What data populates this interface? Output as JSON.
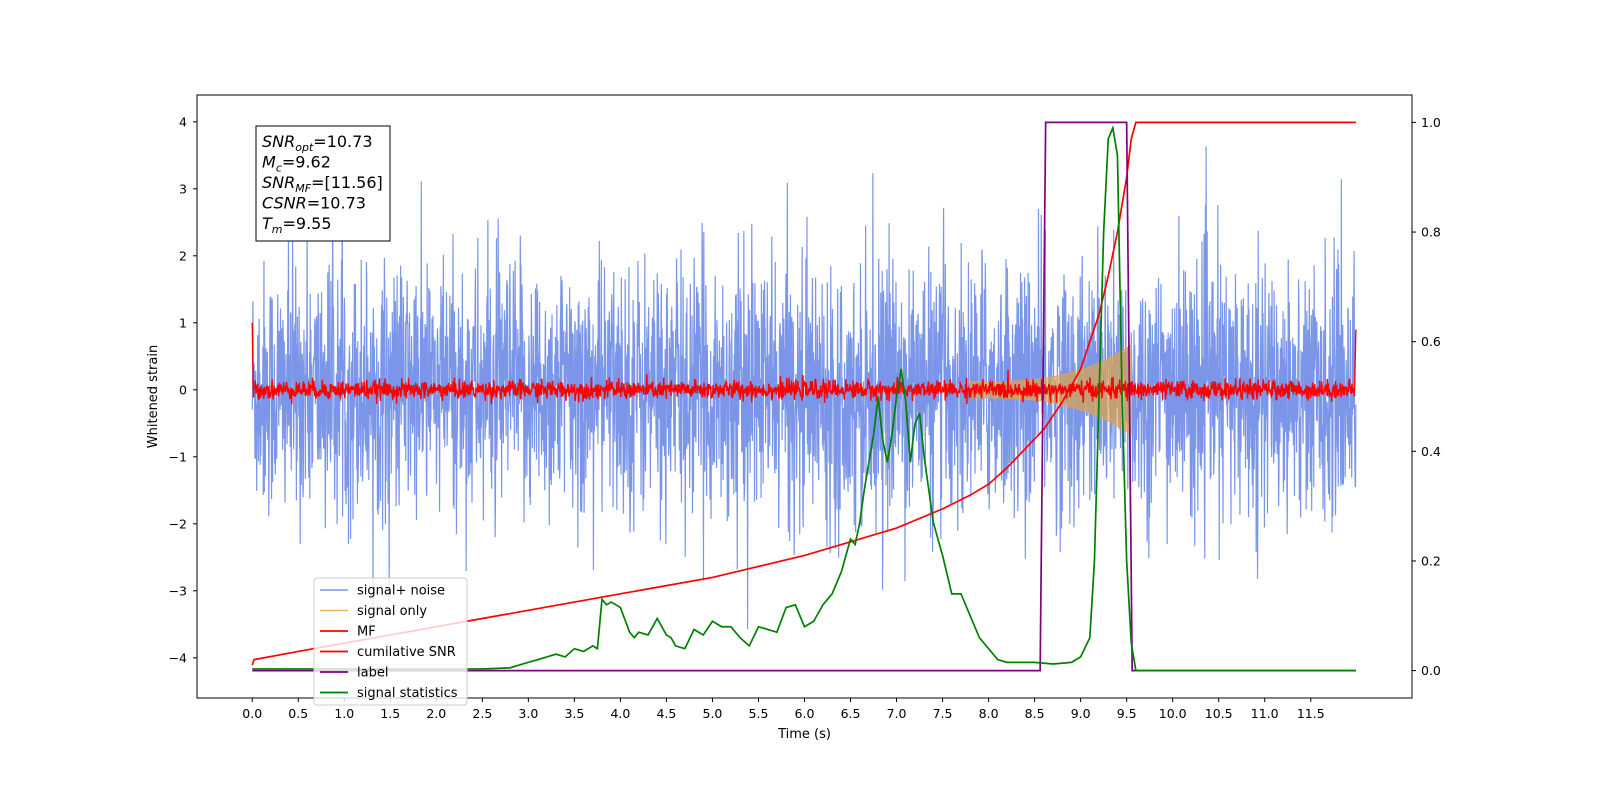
{
  "chart_data": {
    "type": "line",
    "xlabel": "Time (s)",
    "ylabel": "Whitened strain",
    "xlim": [
      -0.6,
      12.6
    ],
    "ylim": [
      -4.6,
      4.4
    ],
    "ylim_right": [
      -0.05,
      1.05
    ],
    "x_ticks": [
      0.0,
      0.5,
      1.0,
      1.5,
      2.0,
      2.5,
      3.0,
      3.5,
      4.0,
      4.5,
      5.0,
      5.5,
      6.0,
      6.5,
      7.0,
      7.5,
      8.0,
      8.5,
      9.0,
      9.5,
      10.0,
      10.5,
      11.0,
      11.5
    ],
    "x_tick_labels": [
      "0.0",
      "0.5",
      "1.0",
      "1.5",
      "2.0",
      "2.5",
      "3.0",
      "3.5",
      "4.0",
      "4.5",
      "5.0",
      "5.5",
      "6.0",
      "6.5",
      "7.0",
      "7.5",
      "8.0",
      "8.5",
      "9.0",
      "9.5",
      "10.0",
      "10.5",
      "11.0",
      "11.5"
    ],
    "y_ticks": [
      -4,
      -3,
      -2,
      -1,
      0,
      1,
      2,
      3,
      4
    ],
    "y_tick_labels": [
      "−4",
      "−3",
      "−2",
      "−1",
      "0",
      "1",
      "2",
      "3",
      "4"
    ],
    "y_right_ticks": [
      0.0,
      0.2,
      0.4,
      0.6,
      0.8,
      1.0
    ],
    "y_right_tick_labels": [
      "0.0",
      "0.2",
      "0.4",
      "0.6",
      "0.8",
      "1.0"
    ],
    "grid": false,
    "legend_position": "lower-left",
    "info_box": {
      "position": "top-left",
      "lines": [
        {
          "base": "SNR",
          "sub": "opt",
          "rest": "=10.73"
        },
        {
          "base": "M",
          "sub": "c",
          "rest": "=9.62"
        },
        {
          "base": "SNR",
          "sub": "MF",
          "rest": "=[11.56]"
        },
        {
          "base": "CSNR",
          "sub": "",
          "rest": "=10.73"
        },
        {
          "base": "T",
          "sub": "m",
          "rest": "=9.55"
        }
      ]
    },
    "colors": {
      "noise": "#7b96e8",
      "signal": "#e5a540",
      "mf": "#ff0000",
      "cumulative": "#ff0000",
      "label": "#800080",
      "stats": "#008000"
    },
    "series": [
      {
        "name": "signal+ noise",
        "key": "noise",
        "axis": "left",
        "type": "noise",
        "x_range": [
          0.0,
          11.99
        ]
      },
      {
        "name": "signal only",
        "key": "signal",
        "axis": "left",
        "type": "chirp",
        "x_range": [
          7.8,
          9.55
        ]
      },
      {
        "name": "MF",
        "key": "mf",
        "axis": "left",
        "type": "noise",
        "x_range": [
          0.0,
          11.99
        ]
      },
      {
        "name": "cumilative SNR",
        "key": "cumulative",
        "axis": "right",
        "x": [
          0.0,
          0.02,
          0.5,
          1.0,
          1.5,
          2.0,
          2.5,
          3.0,
          3.5,
          4.0,
          4.5,
          5.0,
          5.5,
          6.0,
          6.5,
          7.0,
          7.5,
          7.8,
          8.0,
          8.2,
          8.4,
          8.6,
          8.8,
          9.0,
          9.1,
          9.2,
          9.3,
          9.4,
          9.5,
          9.55,
          9.6,
          11.99
        ],
        "y": [
          0.01,
          0.02,
          0.035,
          0.05,
          0.065,
          0.08,
          0.095,
          0.11,
          0.125,
          0.14,
          0.155,
          0.17,
          0.19,
          0.21,
          0.235,
          0.26,
          0.295,
          0.32,
          0.34,
          0.37,
          0.405,
          0.44,
          0.49,
          0.55,
          0.6,
          0.65,
          0.72,
          0.8,
          0.9,
          0.97,
          1.0,
          1.0
        ]
      },
      {
        "name": "label",
        "key": "label",
        "axis": "right",
        "x": [
          0.0,
          8.56,
          8.62,
          9.5,
          9.56,
          11.99
        ],
        "y": [
          0.0,
          0.0,
          1.0,
          1.0,
          0.0,
          0.0
        ]
      },
      {
        "name": "signal statistics",
        "key": "stats",
        "axis": "right",
        "x": [
          0.0,
          0.5,
          1.0,
          1.5,
          2.0,
          2.5,
          2.8,
          2.9,
          3.0,
          3.1,
          3.2,
          3.3,
          3.4,
          3.5,
          3.6,
          3.7,
          3.75,
          3.8,
          3.85,
          3.9,
          4.0,
          4.1,
          4.15,
          4.2,
          4.3,
          4.4,
          4.5,
          4.55,
          4.6,
          4.7,
          4.8,
          4.9,
          5.0,
          5.1,
          5.2,
          5.3,
          5.4,
          5.5,
          5.6,
          5.7,
          5.8,
          5.9,
          6.0,
          6.1,
          6.2,
          6.3,
          6.4,
          6.5,
          6.55,
          6.6,
          6.65,
          6.7,
          6.75,
          6.8,
          6.85,
          6.9,
          6.95,
          7.0,
          7.05,
          7.1,
          7.15,
          7.2,
          7.25,
          7.3,
          7.35,
          7.4,
          7.5,
          7.6,
          7.7,
          7.8,
          7.9,
          8.0,
          8.1,
          8.2,
          8.3,
          8.5,
          8.7,
          8.9,
          9.0,
          9.1,
          9.15,
          9.2,
          9.25,
          9.3,
          9.35,
          9.4,
          9.45,
          9.5,
          9.55,
          9.6,
          10.0,
          11.0,
          11.99
        ],
        "y": [
          0.003,
          0.003,
          0.003,
          0.003,
          0.003,
          0.003,
          0.005,
          0.01,
          0.015,
          0.02,
          0.025,
          0.03,
          0.025,
          0.04,
          0.035,
          0.045,
          0.04,
          0.13,
          0.12,
          0.125,
          0.115,
          0.07,
          0.06,
          0.07,
          0.065,
          0.095,
          0.065,
          0.06,
          0.045,
          0.04,
          0.075,
          0.065,
          0.09,
          0.08,
          0.08,
          0.06,
          0.045,
          0.08,
          0.075,
          0.07,
          0.115,
          0.12,
          0.08,
          0.09,
          0.12,
          0.14,
          0.18,
          0.24,
          0.23,
          0.27,
          0.33,
          0.38,
          0.43,
          0.5,
          0.42,
          0.38,
          0.43,
          0.5,
          0.55,
          0.49,
          0.38,
          0.45,
          0.47,
          0.39,
          0.33,
          0.27,
          0.21,
          0.14,
          0.14,
          0.1,
          0.06,
          0.04,
          0.02,
          0.015,
          0.015,
          0.015,
          0.012,
          0.015,
          0.025,
          0.06,
          0.2,
          0.5,
          0.8,
          0.97,
          0.99,
          0.94,
          0.5,
          0.2,
          0.05,
          0.0,
          0.0,
          0.0,
          0.0
        ]
      }
    ]
  }
}
